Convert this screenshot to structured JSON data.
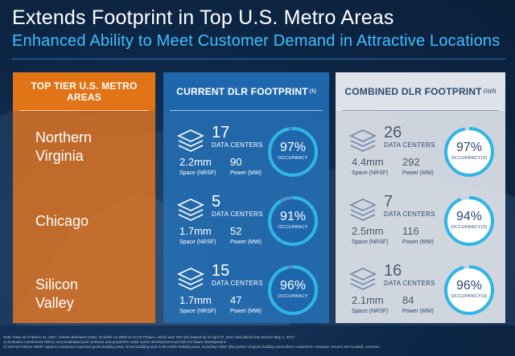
{
  "title": "Extends Footprint in Top U.S. Metro Areas",
  "subtitle": "Enhanced Ability to Meet Customer Demand in Attractive Locations",
  "columns": {
    "metro": {
      "header": "TOP TIER U.S. METRO AREAS"
    },
    "current": {
      "header": "CURRENT DLR FOOTPRINT",
      "sup": "(1)"
    },
    "combined": {
      "header": "COMBINED DLR FOOTPRINT",
      "sup": "(1)(2)"
    }
  },
  "metros": [
    {
      "line1": "Northern",
      "line2": "Virginia"
    },
    {
      "line1": "Chicago",
      "line2": ""
    },
    {
      "line1": "Silicon",
      "line2": "Valley"
    }
  ],
  "current": [
    {
      "count": "17",
      "dc_label": "DATA CENTERS",
      "space": "2.2mm",
      "power": "90",
      "space_label": "Space (NRSF)",
      "power_label": "Power (MW)",
      "occupancy": "97%",
      "occ_label": "OCCUPANCY",
      "occ_value": 0.97
    },
    {
      "count": "5",
      "dc_label": "DATA CENTERS",
      "space": "1.7mm",
      "power": "52",
      "space_label": "Space (NRSF)",
      "power_label": "Power (MW)",
      "occupancy": "91%",
      "occ_label": "OCCUPANCY",
      "occ_value": 0.91
    },
    {
      "count": "15",
      "dc_label": "DATA CENTERS",
      "space": "1.7mm",
      "power": "47",
      "space_label": "Space (NRSF)",
      "power_label": "Power (MW)",
      "occupancy": "96%",
      "occ_label": "OCCUPANCY",
      "occ_value": 0.96
    }
  ],
  "combined": [
    {
      "count": "26",
      "dc_label": "DATA CENTERS",
      "space": "4.4mm",
      "power": "292",
      "space_label": "Space (NRSF)",
      "power_label": "Power (MW)",
      "occupancy": "97%",
      "occ_label": "OCCUPANCY(3)",
      "occ_value": 0.97
    },
    {
      "count": "7",
      "dc_label": "DATA CENTERS",
      "space": "2.5mm",
      "power": "116",
      "space_label": "Space (NRSF)",
      "power_label": "Power (MW)",
      "occupancy": "94%",
      "occ_label": "OCCUPANCY(3)",
      "occ_value": 0.94
    },
    {
      "count": "16",
      "dc_label": "DATA CENTERS",
      "space": "2.1mm",
      "power": "84",
      "space_label": "Space (NRSF)",
      "power_label": "Power (MW)",
      "occupancy": "96%",
      "occ_label": "OCCUPANCY(3)",
      "occ_value": 0.96
    }
  ],
  "footnotes": [
    "Note: Data as of March 31, 2017, unless otherwise noted. Includes 14.4MW at ACC9 Phase I, which was 70% pre-leased as of April 27, 2017 and placed into service May 1, 2017.",
    "1) Excludes investments held in unconsolidated joint ventures and properties under active development and held for future development.",
    "2) DuPont Fabros NRSF equal to company's reported gross building area; Gross building area is the entire building area, including CBSF (the portion of gross building area where customers' computer servers are located), common"
  ],
  "colors": {
    "accent_blue": "#3ec1ff",
    "orange": "#e07416",
    "blue_panel": "#1f67ad",
    "grey_panel": "#dfe3e9",
    "ring_teal": "#2fb5e6"
  }
}
